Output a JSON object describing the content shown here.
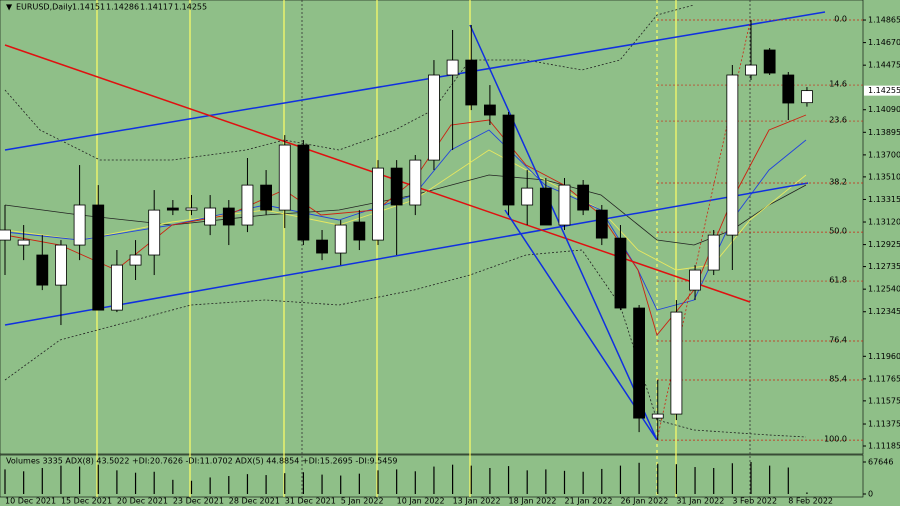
{
  "chart_data": {
    "type": "candlestick",
    "title": "EURUSD,Daily",
    "categories": [
      "10 Dec 2021",
      null,
      null,
      "15 Dec 2021",
      null,
      null,
      "20 Dec 2021",
      null,
      null,
      "23 Dec 2021",
      null,
      null,
      "28 Dec 2021",
      null,
      null,
      "31 Dec 2021",
      null,
      null,
      "5 Jan 2022",
      null,
      null,
      "10 Jan 2022",
      null,
      null,
      "13 Jan 2022",
      null,
      null,
      "18 Jan 2022",
      null,
      null,
      "21 Jan 2022",
      null,
      null,
      "26 Jan 2022",
      null,
      null,
      "31 Jan 2022",
      null,
      null,
      "3 Feb 2022",
      null,
      null,
      "8 Feb 2022",
      null
    ],
    "open": [
      1.12964,
      1.12921,
      1.12835,
      1.12575,
      1.12921,
      1.13267,
      1.12359,
      1.12748,
      1.12835,
      1.13241,
      1.13223,
      1.13094,
      1.13241,
      1.13094,
      1.13439,
      1.13223,
      1.13785,
      1.12964,
      1.12852,
      1.1312,
      1.12964,
      1.13586,
      1.13267,
      1.13655,
      1.1439,
      1.14519,
      1.14131,
      1.14044,
      1.13267,
      1.13413,
      1.13094,
      1.13439,
      1.13223,
      1.12981,
      1.12377,
      1.11426,
      1.11461,
      1.12532,
      1.12705,
      1.13007,
      1.1439,
      1.14606,
      1.1439,
      1.14151
    ],
    "high": [
      1.13267,
      1.13094,
      1.13007,
      1.12964,
      1.13612,
      1.13439,
      1.12878,
      1.12964,
      1.13396,
      1.1331,
      1.13353,
      1.13353,
      1.1331,
      1.13673,
      1.13569,
      1.13871,
      1.13828,
      1.13051,
      1.13137,
      1.13223,
      1.13655,
      1.13655,
      1.13699,
      1.14519,
      1.14779,
      1.14822,
      1.14303,
      1.1407,
      1.13569,
      1.135,
      1.135,
      1.13483,
      1.13267,
      1.13094,
      1.12403,
      1.11755,
      1.12446,
      1.12748,
      1.13051,
      1.14476,
      1.14865,
      1.14623,
      1.14416,
      1.14286
    ],
    "low": [
      1.12662,
      1.12791,
      1.12532,
      1.1223,
      1.12791,
      1.12359,
      1.12342,
      1.12619,
      1.12662,
      1.1318,
      1.1318,
      1.13007,
      1.12921,
      1.13033,
      1.1318,
      1.13068,
      1.12921,
      1.12791,
      1.12748,
      1.12878,
      1.12921,
      1.12835,
      1.1318,
      1.13569,
      1.13742,
      1.14087,
      1.13958,
      1.1318,
      1.13094,
      1.13094,
      1.13051,
      1.1318,
      1.12921,
      1.12359,
      1.11305,
      1.11236,
      1.11409,
      1.12446,
      1.12662,
      1.12705,
      1.14347,
      1.1439,
      1.14001,
      1.14117
    ],
    "close": [
      1.13051,
      1.12964,
      1.12575,
      1.12921,
      1.13267,
      1.12359,
      1.12748,
      1.12835,
      1.13223,
      1.13223,
      1.13241,
      1.13241,
      1.13094,
      1.13439,
      1.13223,
      1.13785,
      1.12964,
      1.12852,
      1.13094,
      1.12964,
      1.13586,
      1.13267,
      1.13655,
      1.1439,
      1.14519,
      1.14131,
      1.14044,
      1.13267,
      1.13413,
      1.13094,
      1.13439,
      1.13223,
      1.12981,
      1.12377,
      1.11426,
      1.11461,
      1.12342,
      1.12705,
      1.13007,
      1.1439,
      1.14476,
      1.14407,
      1.14148,
      1.14255
    ],
    "ylim": [
      1.11116,
      1.15038
    ],
    "yticks": [
      1.14865,
      {
        "value": 1.1467,
        "label": "1.14670"
      },
      1.14475,
      {
        "value": 1.1409,
        "label": "1.14090"
      },
      1.13895,
      {
        "value": 1.137,
        "label": "1.13700"
      },
      {
        "value": 1.1351,
        "label": "1.13510"
      },
      1.13315,
      {
        "value": 1.1312,
        "label": "1.13120"
      },
      1.12925,
      1.12735,
      {
        "value": 1.1254,
        "label": "1.12540"
      },
      1.12345,
      {
        "value": 1.1196,
        "label": "1.11960"
      },
      1.11765,
      1.11575,
      1.11375,
      1.11185
    ],
    "fib_levels": [
      {
        "label": "0.0",
        "price": 1.14865
      },
      {
        "label": "14.6",
        "price": 1.14303
      },
      {
        "label": "23.6",
        "price": 1.13992
      },
      {
        "label": "38.2",
        "price": 1.13457
      },
      {
        "label": "50.0",
        "price": 1.13033
      },
      {
        "label": "61.8",
        "price": 1.1261
      },
      {
        "label": "76.4",
        "price": 1.12092
      },
      {
        "label": "85.4",
        "price": 1.11755
      },
      {
        "label": "100.0",
        "price": 1.11236
      }
    ],
    "color_up": "#ffffff",
    "color_down": "#000000",
    "indicator_label": "Volumes 3335  ADX(8) 43.5022 +DI:20.7626 -DI:11.0702  ADX(5) 44.8854 +DI:15.2695 -DI:9.5459",
    "volumes": [
      52000,
      48000,
      55000,
      60000,
      58000,
      62000,
      50000,
      45000,
      47000,
      30000,
      28000,
      35000,
      38000,
      42000,
      40000,
      44000,
      46000,
      41000,
      39000,
      43000,
      50000,
      52000,
      48000,
      58000,
      62000,
      60000,
      55000,
      59000,
      50000,
      52000,
      49000,
      47000,
      53000,
      60000,
      66000,
      64000,
      63000,
      57000,
      55000,
      65000,
      67646,
      60000,
      56000,
      3335
    ],
    "y2lim": [
      0,
      67646
    ],
    "y2ticks": [
      0,
      67646
    ]
  }
}
